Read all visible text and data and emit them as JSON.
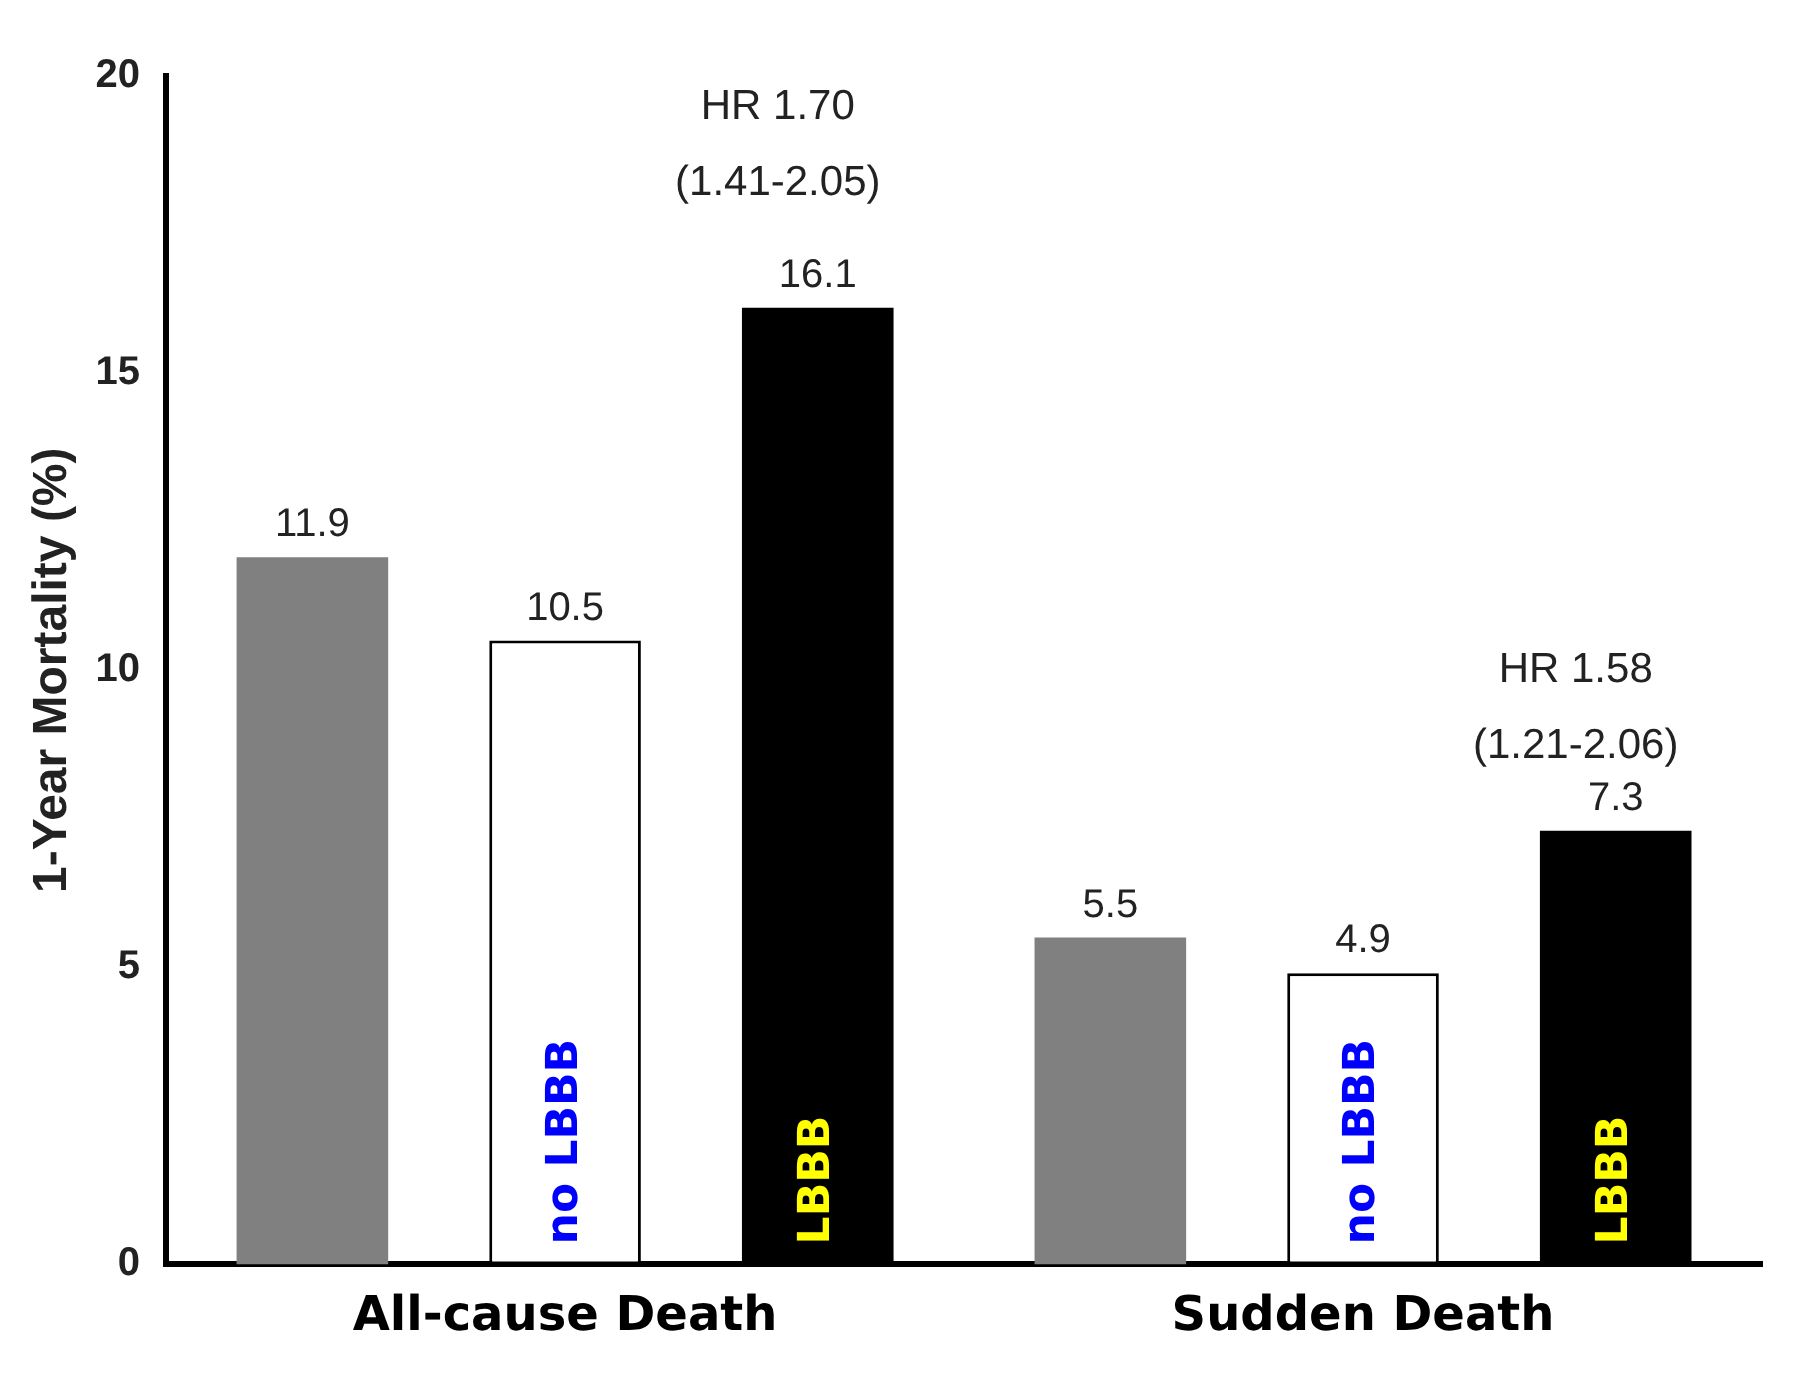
{
  "chart_data": {
    "type": "bar",
    "ylabel": "1-Year Mortality (%)",
    "categories": [
      "All-cause Death",
      "Sudden Death"
    ],
    "series": [
      {
        "color": "#808080",
        "values": [
          11.9,
          5.5
        ]
      },
      {
        "name": "no LBBB",
        "color": "#ffffff",
        "values": [
          10.5,
          4.9
        ]
      },
      {
        "name": "LBBB",
        "color": "#000000",
        "values": [
          16.1,
          7.3
        ]
      }
    ],
    "ylim": [
      0,
      20
    ],
    "yticks": [
      0,
      5,
      10,
      15,
      20
    ],
    "grid": false,
    "legend": false,
    "data_labels": true,
    "annotations": [
      "HR 1.70",
      "(1.41-2.05)",
      "HR 1.58",
      "(1.21-2.06)"
    ]
  }
}
